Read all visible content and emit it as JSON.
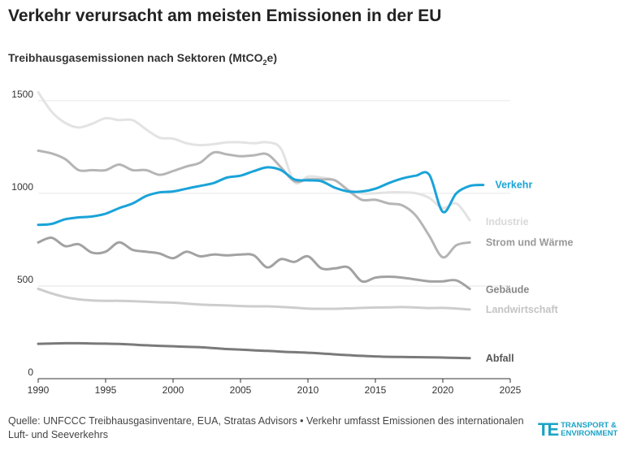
{
  "title": "Verkehr verursacht am meisten Emissionen in der EU",
  "subtitle_pre": "Treibhausgasemissionen nach Sektoren (MtCO",
  "subtitle_sub": "2",
  "subtitle_post": "e)",
  "source": "Quelle: UNFCCC Treibhausgasinventare, EUA, Stratas Advisors • Verkehr umfasst Emissionen des internationalen Luft- und Seeverkehrs",
  "logo": {
    "mark": "TE",
    "line1": "TRANSPORT &",
    "line2": "ENVIRONMENT"
  },
  "chart_data": {
    "type": "line",
    "xlim": [
      1990,
      2025
    ],
    "ylim": [
      0,
      1600
    ],
    "xticks": [
      "1990",
      "1995",
      "2000",
      "2005",
      "2010",
      "2015",
      "2020",
      "2025"
    ],
    "yticks": [
      "0",
      "500",
      "1000",
      "1500"
    ],
    "grid": true,
    "series": [
      {
        "name": "Industrie",
        "color": "#e3e3e3",
        "x": [
          1990,
          1991,
          1992,
          1993,
          1994,
          1995,
          1996,
          1997,
          1998,
          1999,
          2000,
          2001,
          2002,
          2003,
          2004,
          2005,
          2006,
          2007,
          2008,
          2009,
          2010,
          2011,
          2012,
          2013,
          2014,
          2015,
          2016,
          2017,
          2018,
          2019,
          2020,
          2021,
          2022
        ],
        "y": [
          1545,
          1440,
          1380,
          1355,
          1375,
          1405,
          1395,
          1395,
          1345,
          1300,
          1295,
          1270,
          1260,
          1265,
          1275,
          1275,
          1270,
          1275,
          1240,
          1060,
          1090,
          1085,
          1070,
          1020,
          1000,
          1000,
          1005,
          1005,
          1000,
          975,
          920,
          945,
          855
        ]
      },
      {
        "name": "Strom und Wärme",
        "color": "#b5b5b5",
        "x": [
          1990,
          1991,
          1992,
          1993,
          1994,
          1995,
          1996,
          1997,
          1998,
          1999,
          2000,
          2001,
          2002,
          2003,
          2004,
          2005,
          2006,
          2007,
          2008,
          2009,
          2010,
          2011,
          2012,
          2013,
          2014,
          2015,
          2016,
          2017,
          2018,
          2019,
          2020,
          2021,
          2022
        ],
        "y": [
          1230,
          1215,
          1185,
          1125,
          1125,
          1125,
          1155,
          1125,
          1125,
          1100,
          1120,
          1145,
          1165,
          1220,
          1210,
          1200,
          1205,
          1210,
          1140,
          1065,
          1075,
          1075,
          1070,
          1015,
          965,
          965,
          945,
          935,
          880,
          770,
          655,
          720,
          735
        ]
      },
      {
        "name": "Verkehr",
        "color": "#1aa3d9",
        "x": [
          1990,
          1991,
          1992,
          1993,
          1994,
          1995,
          1996,
          1997,
          1998,
          1999,
          2000,
          2001,
          2002,
          2003,
          2004,
          2005,
          2006,
          2007,
          2008,
          2009,
          2010,
          2011,
          2012,
          2013,
          2014,
          2015,
          2016,
          2017,
          2018,
          2019,
          2020,
          2021,
          2022,
          2023
        ],
        "y": [
          830,
          835,
          860,
          870,
          875,
          890,
          920,
          945,
          985,
          1005,
          1010,
          1025,
          1040,
          1055,
          1085,
          1095,
          1120,
          1140,
          1125,
          1075,
          1070,
          1065,
          1030,
          1010,
          1010,
          1025,
          1055,
          1080,
          1095,
          1100,
          900,
          1000,
          1040,
          1045
        ]
      },
      {
        "name": "Gebäude",
        "color": "#a2a2a2",
        "x": [
          1990,
          1991,
          1992,
          1993,
          1994,
          1995,
          1996,
          1997,
          1998,
          1999,
          2000,
          2001,
          2002,
          2003,
          2004,
          2005,
          2006,
          2007,
          2008,
          2009,
          2010,
          2011,
          2012,
          2013,
          2014,
          2015,
          2016,
          2017,
          2018,
          2019,
          2020,
          2021,
          2022
        ],
        "y": [
          735,
          760,
          715,
          725,
          680,
          685,
          735,
          695,
          685,
          675,
          650,
          685,
          660,
          670,
          665,
          670,
          665,
          600,
          645,
          630,
          660,
          595,
          595,
          600,
          525,
          545,
          550,
          545,
          535,
          525,
          525,
          530,
          485
        ]
      },
      {
        "name": "Landwirtschaft",
        "color": "#cdcdcd",
        "x": [
          1990,
          1991,
          1992,
          1993,
          1994,
          1995,
          1996,
          1997,
          1998,
          1999,
          2000,
          2001,
          2002,
          2003,
          2004,
          2005,
          2006,
          2007,
          2008,
          2009,
          2010,
          2011,
          2012,
          2013,
          2014,
          2015,
          2016,
          2017,
          2018,
          2019,
          2020,
          2021,
          2022
        ],
        "y": [
          485,
          460,
          440,
          428,
          422,
          420,
          420,
          418,
          415,
          412,
          410,
          405,
          400,
          397,
          395,
          392,
          390,
          390,
          387,
          383,
          378,
          377,
          377,
          379,
          382,
          384,
          385,
          386,
          384,
          381,
          382,
          378,
          373
        ]
      },
      {
        "name": "Abfall",
        "color": "#7a7a7a",
        "x": [
          1990,
          1991,
          1992,
          1993,
          1994,
          1995,
          1996,
          1997,
          1998,
          1999,
          2000,
          2001,
          2002,
          2003,
          2004,
          2005,
          2006,
          2007,
          2008,
          2009,
          2010,
          2011,
          2012,
          2013,
          2014,
          2015,
          2016,
          2017,
          2018,
          2019,
          2020,
          2021,
          2022
        ],
        "y": [
          188,
          190,
          191,
          191,
          190,
          189,
          187,
          184,
          180,
          177,
          175,
          172,
          170,
          165,
          160,
          157,
          153,
          150,
          146,
          143,
          140,
          136,
          131,
          127,
          123,
          120,
          118,
          117,
          116,
          115,
          114,
          112,
          111
        ]
      }
    ],
    "labels": [
      {
        "text": "Verkehr",
        "series": "Verkehr",
        "color": "#1aa3d9",
        "x": 2023.4,
        "y": 1045
      },
      {
        "text": "Industrie",
        "series": "Industrie",
        "color": "#d9d9d9",
        "x": 2022.7,
        "y": 845
      },
      {
        "text": "Strom und Wärme",
        "series": "Strom und Wärme",
        "color": "#999999",
        "x": 2022.7,
        "y": 735
      },
      {
        "text": "Gebäude",
        "series": "Gebäude",
        "color": "#888888",
        "x": 2022.7,
        "y": 480
      },
      {
        "text": "Landwirtschaft",
        "series": "Landwirtschaft",
        "color": "#c4c4c4",
        "x": 2022.7,
        "y": 372
      },
      {
        "text": "Abfall",
        "series": "Abfall",
        "color": "#555555",
        "x": 2022.7,
        "y": 110
      }
    ]
  }
}
